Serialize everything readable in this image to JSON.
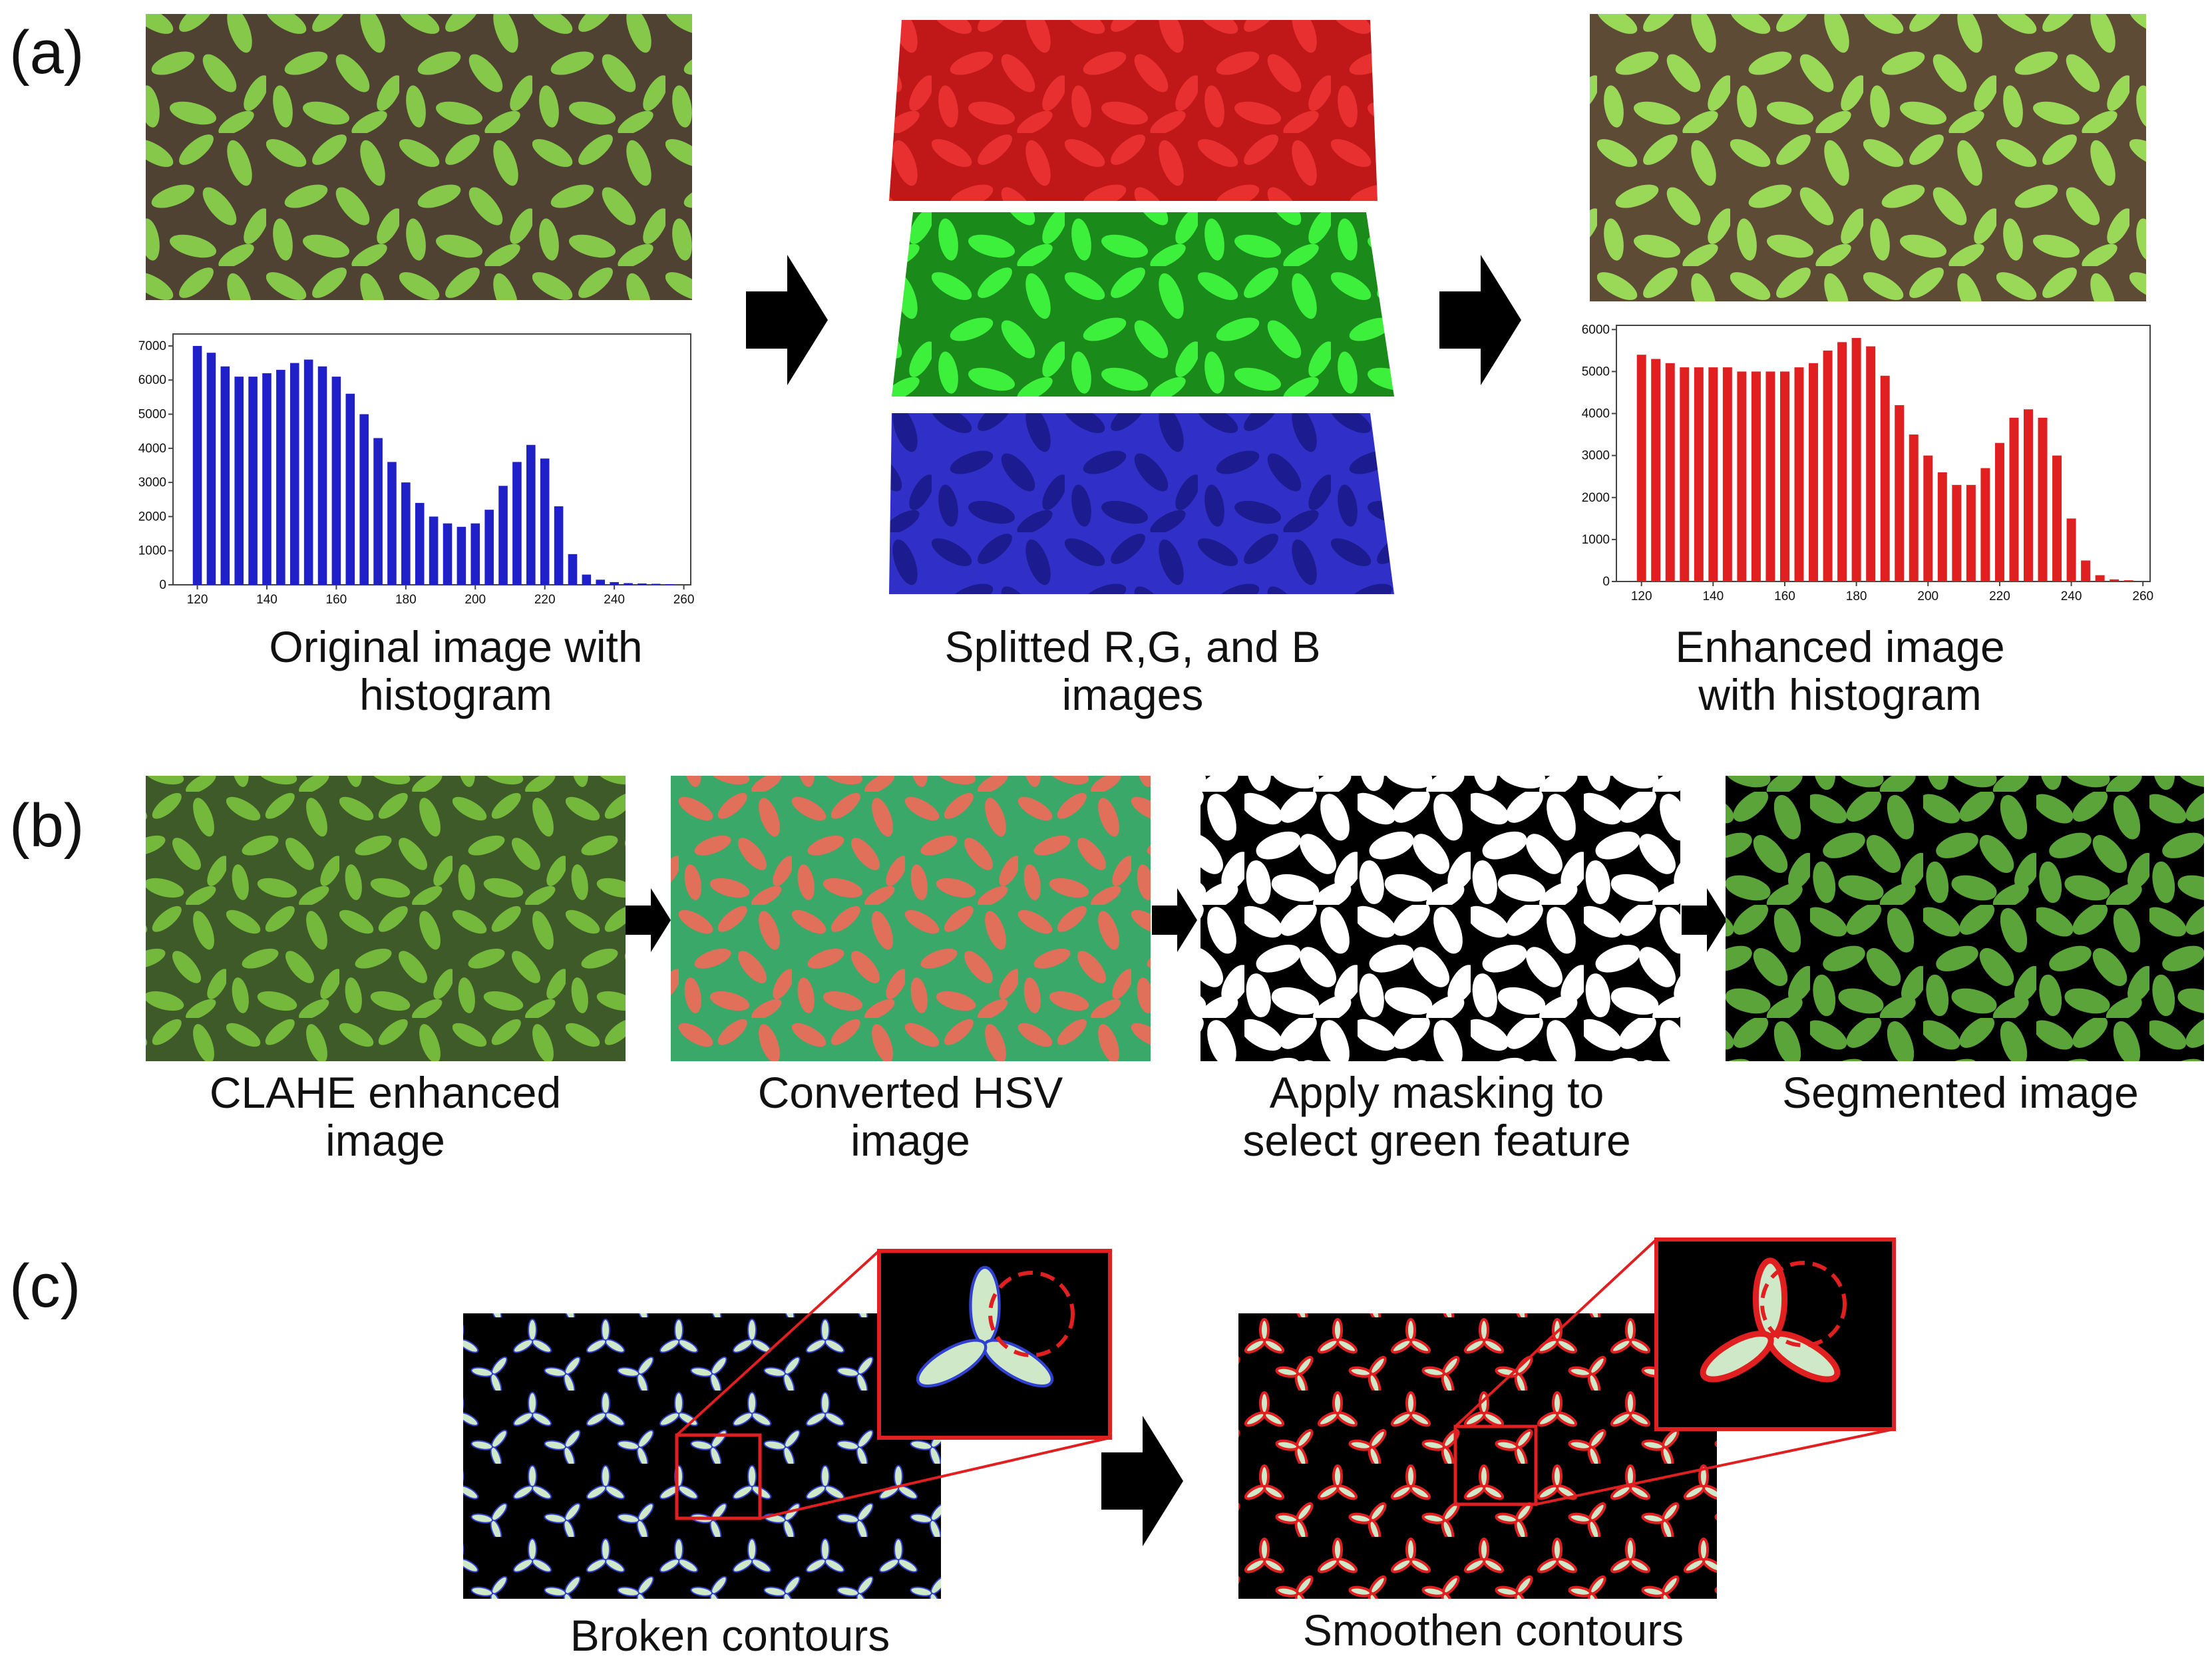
{
  "panels": {
    "a": {
      "label": "(a)",
      "captions": [
        [
          "Original image with",
          "histogram"
        ],
        [
          "Splitted R,G, and B",
          "images"
        ],
        [
          "Enhanced image",
          "with histogram"
        ]
      ]
    },
    "b": {
      "label": "(b)",
      "captions": [
        [
          "CLAHE enhanced",
          "image"
        ],
        [
          "Converted HSV",
          "image"
        ],
        [
          "Apply masking to",
          "select green feature"
        ],
        [
          "Segmented image"
        ]
      ]
    },
    "c": {
      "label": "(c)",
      "captions": [
        [
          "Broken contours"
        ],
        [
          "Smoothen contours"
        ]
      ]
    }
  },
  "chart_data": [
    {
      "type": "bar",
      "color": "#2020c8",
      "x": [
        120,
        124,
        128,
        132,
        136,
        140,
        144,
        148,
        152,
        156,
        160,
        164,
        168,
        172,
        176,
        180,
        184,
        188,
        192,
        196,
        200,
        204,
        208,
        212,
        216,
        220,
        224,
        228,
        232,
        236,
        240,
        244,
        248,
        252,
        256
      ],
      "values": [
        7000,
        6800,
        6400,
        6100,
        6100,
        6200,
        6300,
        6500,
        6600,
        6400,
        6100,
        5600,
        5000,
        4300,
        3600,
        3000,
        2400,
        2000,
        1800,
        1700,
        1800,
        2200,
        2900,
        3600,
        4100,
        3700,
        2300,
        900,
        300,
        150,
        80,
        50,
        40,
        30,
        20
      ],
      "xlim": [
        113,
        262
      ],
      "ylim": [
        0,
        7350
      ],
      "xticks": [
        120,
        140,
        160,
        180,
        200,
        220,
        240,
        260
      ],
      "yticks": [
        0,
        1000,
        2000,
        3000,
        4000,
        5000,
        6000,
        7000
      ]
    },
    {
      "type": "bar",
      "color": "#e02020",
      "x": [
        120,
        124,
        128,
        132,
        136,
        140,
        144,
        148,
        152,
        156,
        160,
        164,
        168,
        172,
        176,
        180,
        184,
        188,
        192,
        196,
        200,
        204,
        208,
        212,
        216,
        220,
        224,
        228,
        232,
        236,
        240,
        244,
        248,
        252,
        256
      ],
      "values": [
        5400,
        5300,
        5200,
        5100,
        5100,
        5100,
        5100,
        5000,
        5000,
        5000,
        5000,
        5100,
        5200,
        5500,
        5700,
        5800,
        5600,
        4900,
        4200,
        3500,
        3000,
        2600,
        2300,
        2300,
        2700,
        3300,
        3900,
        4100,
        3900,
        3000,
        1500,
        500,
        150,
        50,
        30
      ],
      "xlim": [
        113,
        262
      ],
      "ylim": [
        0,
        6100
      ],
      "xticks": [
        120,
        140,
        160,
        180,
        200,
        220,
        240,
        260
      ],
      "yticks": [
        0,
        1000,
        2000,
        3000,
        4000,
        5000,
        6000
      ]
    }
  ]
}
